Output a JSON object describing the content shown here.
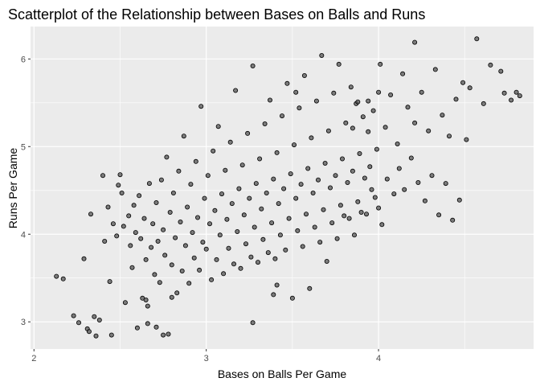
{
  "chart_data": {
    "type": "scatter",
    "title": "Scatterplot of the Relationship between Bases on Balls and Runs",
    "xlabel": "Bases on Balls Per Game",
    "ylabel": "Runs Per Game",
    "xlim": [
      1.98,
      4.9
    ],
    "ylim": [
      2.69,
      6.37
    ],
    "x_ticks": [
      2,
      3,
      4
    ],
    "x_tick_labels": [
      "2",
      "3",
      "4"
    ],
    "y_ticks": [
      3,
      4,
      5,
      6
    ],
    "y_tick_labels": [
      "3",
      "4",
      "5",
      "6"
    ],
    "grid": true,
    "legend": "none",
    "colors": {
      "panel": "#ebebeb",
      "grid": "#ffffff",
      "point_fill": "#555555",
      "point_stroke": "#000000"
    },
    "points": [
      [
        2.13,
        3.52
      ],
      [
        2.17,
        3.49
      ],
      [
        2.23,
        3.07
      ],
      [
        2.29,
        3.72
      ],
      [
        2.31,
        2.92
      ],
      [
        2.32,
        2.89
      ],
      [
        2.33,
        4.23
      ],
      [
        2.35,
        3.06
      ],
      [
        2.38,
        3.02
      ],
      [
        2.4,
        4.67
      ],
      [
        2.41,
        3.92
      ],
      [
        2.43,
        4.31
      ],
      [
        2.44,
        3.46
      ],
      [
        2.45,
        2.85
      ],
      [
        2.46,
        4.12
      ],
      [
        2.48,
        3.98
      ],
      [
        2.49,
        4.56
      ],
      [
        2.5,
        4.68
      ],
      [
        2.51,
        4.47
      ],
      [
        2.52,
        4.09
      ],
      [
        2.53,
        3.22
      ],
      [
        2.55,
        4.21
      ],
      [
        2.56,
        3.87
      ],
      [
        2.57,
        3.62
      ],
      [
        2.58,
        4.33
      ],
      [
        2.59,
        4.02
      ],
      [
        2.6,
        2.93
      ],
      [
        2.61,
        4.44
      ],
      [
        2.62,
        3.95
      ],
      [
        2.63,
        3.27
      ],
      [
        2.64,
        4.18
      ],
      [
        2.65,
        3.71
      ],
      [
        2.66,
        2.98
      ],
      [
        2.67,
        4.58
      ],
      [
        2.68,
        3.85
      ],
      [
        2.69,
        4.12
      ],
      [
        2.7,
        3.54
      ],
      [
        2.71,
        4.36
      ],
      [
        2.72,
        3.92
      ],
      [
        2.73,
        3.45
      ],
      [
        2.74,
        4.62
      ],
      [
        2.75,
        4.05
      ],
      [
        2.76,
        3.76
      ],
      [
        2.77,
        4.88
      ],
      [
        2.78,
        2.86
      ],
      [
        2.79,
        4.25
      ],
      [
        2.8,
        3.65
      ],
      [
        2.81,
        4.47
      ],
      [
        2.82,
        3.96
      ],
      [
        2.83,
        3.33
      ],
      [
        2.84,
        4.72
      ],
      [
        2.85,
        4.14
      ],
      [
        2.86,
        3.58
      ],
      [
        2.87,
        5.12
      ],
      [
        2.88,
        3.87
      ],
      [
        2.89,
        4.31
      ],
      [
        2.9,
        3.44
      ],
      [
        2.91,
        4.57
      ],
      [
        2.92,
        4.02
      ],
      [
        2.93,
        3.73
      ],
      [
        2.94,
        4.83
      ],
      [
        2.95,
        4.19
      ],
      [
        2.96,
        3.59
      ],
      [
        2.97,
        5.46
      ],
      [
        2.98,
        3.91
      ],
      [
        2.99,
        4.41
      ],
      [
        3.0,
        3.83
      ],
      [
        3.01,
        4.67
      ],
      [
        3.02,
        4.12
      ],
      [
        3.03,
        3.48
      ],
      [
        3.04,
        4.95
      ],
      [
        3.05,
        4.27
      ],
      [
        3.06,
        3.71
      ],
      [
        3.07,
        5.23
      ],
      [
        3.08,
        3.99
      ],
      [
        3.09,
        4.46
      ],
      [
        3.1,
        3.55
      ],
      [
        3.11,
        4.73
      ],
      [
        3.12,
        4.17
      ],
      [
        3.13,
        3.84
      ],
      [
        3.14,
        5.05
      ],
      [
        3.15,
        4.35
      ],
      [
        3.16,
        3.66
      ],
      [
        3.17,
        5.64
      ],
      [
        3.18,
        4.03
      ],
      [
        3.19,
        4.52
      ],
      [
        3.2,
        3.61
      ],
      [
        3.21,
        4.79
      ],
      [
        3.22,
        4.22
      ],
      [
        3.23,
        3.89
      ],
      [
        3.24,
        5.15
      ],
      [
        3.25,
        4.41
      ],
      [
        3.26,
        3.74
      ],
      [
        3.27,
        5.92
      ],
      [
        3.28,
        4.08
      ],
      [
        3.29,
        4.58
      ],
      [
        3.3,
        3.68
      ],
      [
        3.31,
        4.86
      ],
      [
        3.32,
        4.29
      ],
      [
        3.33,
        3.94
      ],
      [
        3.34,
        5.26
      ],
      [
        3.35,
        4.47
      ],
      [
        3.36,
        3.79
      ],
      [
        3.37,
        5.53
      ],
      [
        3.38,
        4.13
      ],
      [
        3.39,
        4.63
      ],
      [
        3.4,
        3.72
      ],
      [
        3.41,
        4.93
      ],
      [
        3.42,
        4.35
      ],
      [
        3.43,
        3.99
      ],
      [
        3.44,
        5.35
      ],
      [
        3.45,
        4.52
      ],
      [
        3.46,
        3.82
      ],
      [
        3.47,
        5.72
      ],
      [
        3.48,
        4.18
      ],
      [
        3.49,
        4.69
      ],
      [
        3.5,
        3.27
      ],
      [
        3.51,
        5.02
      ],
      [
        3.52,
        4.41
      ],
      [
        3.53,
        4.04
      ],
      [
        3.54,
        5.44
      ],
      [
        3.55,
        4.57
      ],
      [
        3.56,
        3.86
      ],
      [
        3.57,
        5.81
      ],
      [
        3.58,
        4.23
      ],
      [
        3.59,
        4.75
      ],
      [
        3.6,
        3.38
      ],
      [
        3.61,
        5.1
      ],
      [
        3.62,
        4.47
      ],
      [
        3.63,
        4.08
      ],
      [
        3.64,
        5.52
      ],
      [
        3.65,
        4.62
      ],
      [
        3.66,
        3.91
      ],
      [
        3.67,
        6.04
      ],
      [
        3.68,
        4.28
      ],
      [
        3.69,
        4.81
      ],
      [
        3.7,
        3.69
      ],
      [
        3.71,
        5.18
      ],
      [
        3.72,
        4.53
      ],
      [
        3.73,
        4.13
      ],
      [
        3.74,
        5.61
      ],
      [
        3.75,
        4.67
      ],
      [
        3.76,
        3.95
      ],
      [
        3.77,
        5.94
      ],
      [
        3.78,
        4.33
      ],
      [
        3.79,
        4.86
      ],
      [
        3.8,
        4.21
      ],
      [
        3.81,
        5.27
      ],
      [
        3.82,
        4.59
      ],
      [
        3.83,
        4.18
      ],
      [
        3.84,
        5.68
      ],
      [
        3.85,
        4.72
      ],
      [
        3.86,
        3.99
      ],
      [
        3.87,
        5.49
      ],
      [
        3.88,
        4.37
      ],
      [
        3.89,
        4.92
      ],
      [
        3.9,
        4.25
      ],
      [
        3.91,
        5.34
      ],
      [
        3.92,
        4.64
      ],
      [
        3.93,
        4.23
      ],
      [
        3.94,
        5.17
      ],
      [
        3.95,
        4.77
      ],
      [
        3.96,
        4.51
      ],
      [
        3.97,
        5.41
      ],
      [
        3.98,
        4.42
      ],
      [
        3.99,
        4.97
      ],
      [
        4.0,
        4.3
      ],
      [
        4.01,
        5.94
      ],
      [
        4.02,
        4.11
      ],
      [
        4.04,
        5.22
      ],
      [
        4.05,
        4.63
      ],
      [
        4.07,
        5.59
      ],
      [
        4.09,
        4.46
      ],
      [
        4.11,
        5.03
      ],
      [
        4.12,
        4.75
      ],
      [
        4.14,
        5.83
      ],
      [
        4.15,
        4.51
      ],
      [
        4.17,
        5.45
      ],
      [
        4.19,
        4.87
      ],
      [
        4.21,
        5.27
      ],
      [
        4.23,
        4.59
      ],
      [
        4.25,
        5.62
      ],
      [
        4.27,
        4.38
      ],
      [
        4.29,
        5.18
      ],
      [
        4.31,
        4.67
      ],
      [
        4.33,
        5.88
      ],
      [
        4.35,
        4.22
      ],
      [
        4.37,
        5.36
      ],
      [
        4.39,
        4.58
      ],
      [
        4.41,
        5.12
      ],
      [
        4.43,
        4.16
      ],
      [
        4.45,
        5.54
      ],
      [
        4.47,
        4.39
      ],
      [
        4.49,
        5.73
      ],
      [
        4.51,
        5.08
      ],
      [
        4.53,
        5.67
      ],
      [
        4.57,
        6.23
      ],
      [
        4.61,
        5.49
      ],
      [
        4.65,
        5.93
      ],
      [
        4.71,
        5.86
      ],
      [
        4.73,
        5.61
      ],
      [
        4.77,
        5.53
      ],
      [
        4.8,
        5.62
      ],
      [
        4.82,
        5.58
      ],
      [
        4.21,
        6.19
      ],
      [
        4.0,
        5.62
      ],
      [
        3.94,
        5.52
      ],
      [
        3.88,
        5.51
      ],
      [
        3.85,
        5.21
      ],
      [
        3.52,
        5.62
      ],
      [
        2.26,
        2.99
      ],
      [
        2.36,
        2.84
      ],
      [
        2.71,
        2.94
      ],
      [
        2.75,
        2.85
      ],
      [
        3.27,
        2.99
      ],
      [
        2.66,
        3.18
      ],
      [
        2.65,
        3.25
      ],
      [
        2.8,
        3.28
      ],
      [
        3.39,
        3.31
      ],
      [
        3.41,
        3.42
      ]
    ]
  }
}
